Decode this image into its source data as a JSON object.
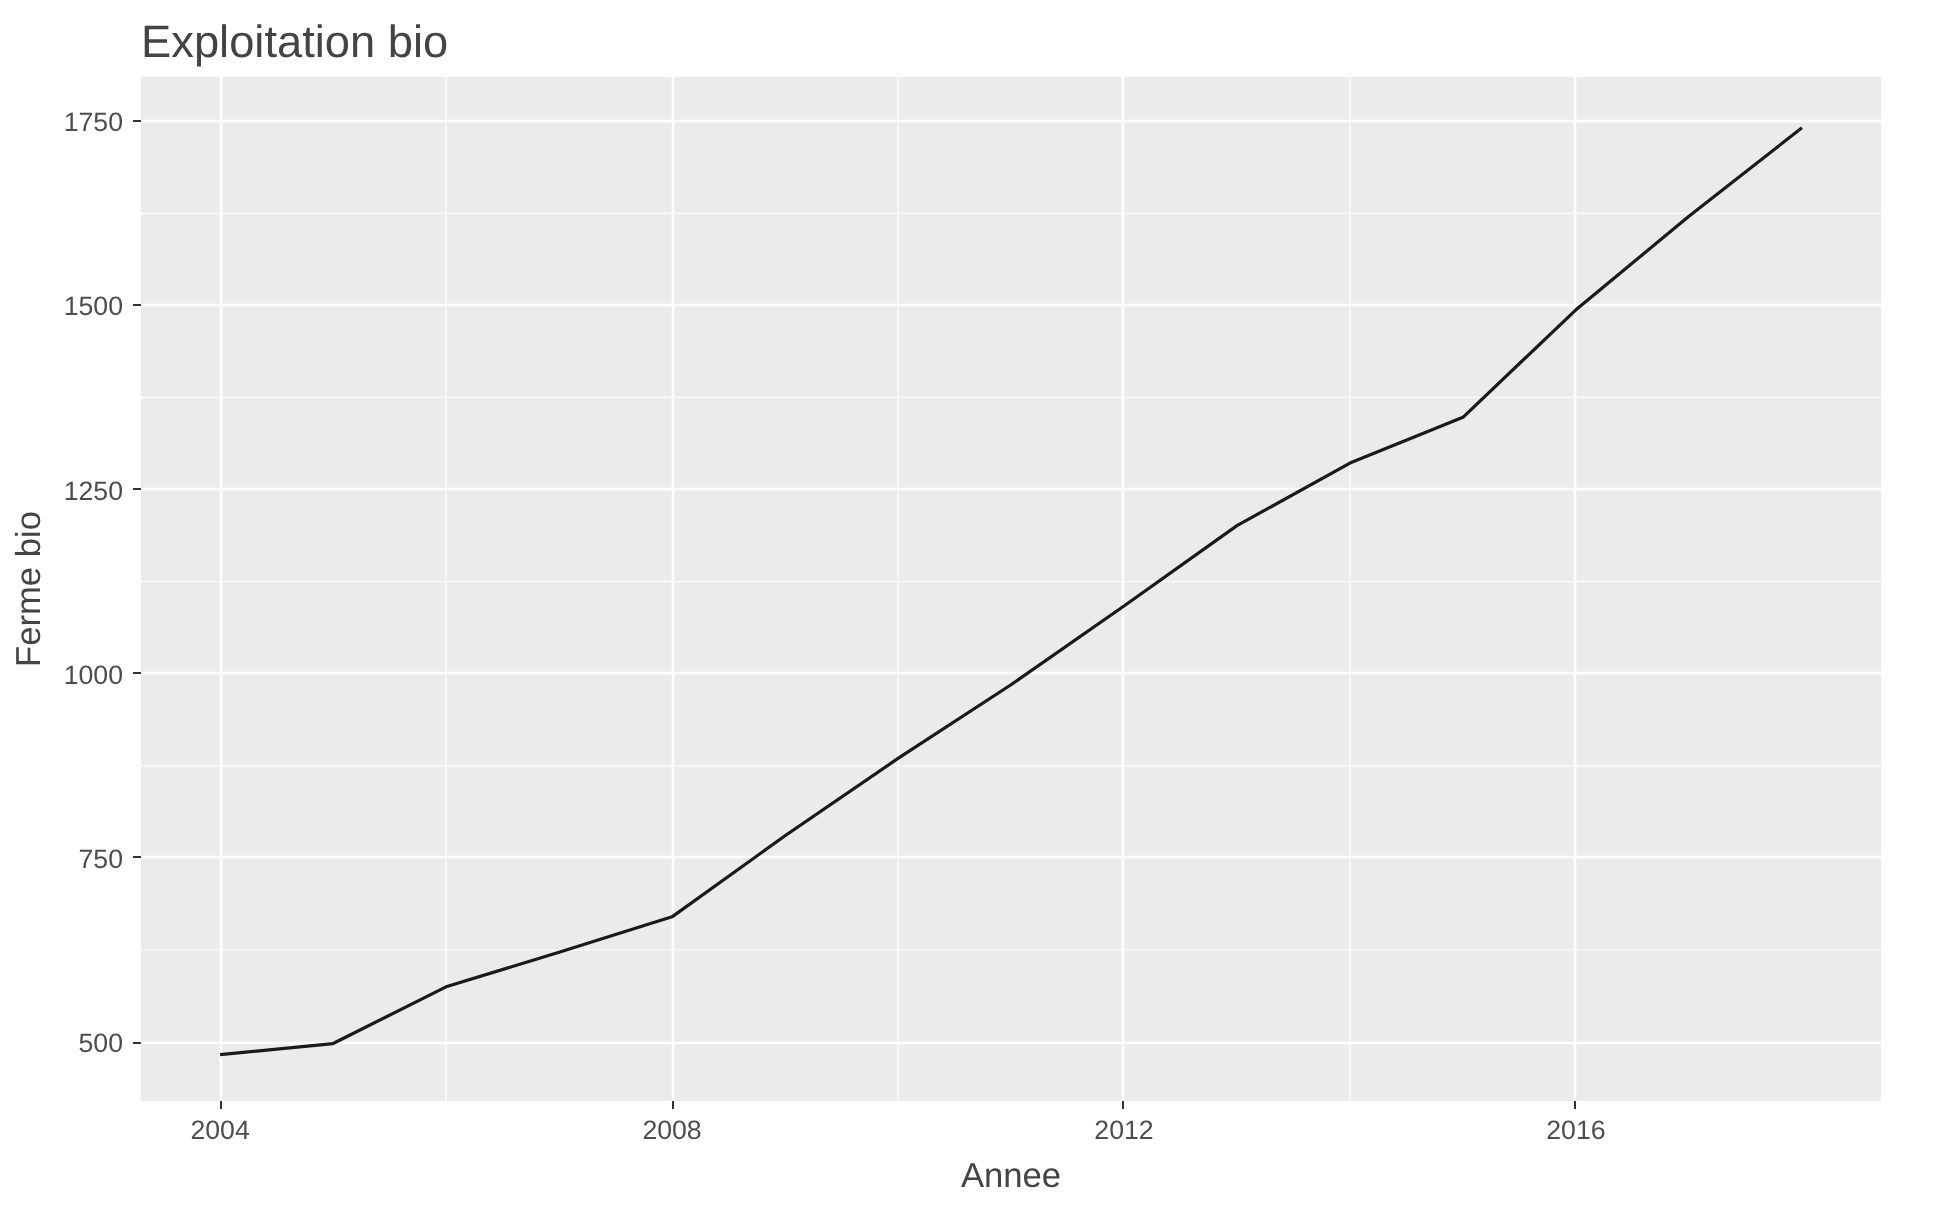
{
  "chart_data": {
    "type": "line",
    "title": "Exploitation bio",
    "xlabel": "Annee",
    "ylabel": "Ferme bio",
    "x": [
      2004,
      2005,
      2006,
      2007,
      2008,
      2009,
      2010,
      2011,
      2012,
      2013,
      2014,
      2015,
      2016,
      2017,
      2018
    ],
    "series": [
      {
        "color": "#1a1a1a",
        "values": [
          483,
          498,
          575,
          622,
          670,
          780,
          885,
          985,
          1092,
          1201,
          1286,
          1348,
          1494,
          1621,
          1741
        ]
      }
    ],
    "xlim": [
      2003.3,
      2018.7
    ],
    "xticks": [
      2004,
      2008,
      2012,
      2016
    ],
    "ylim": [
      420,
      1810
    ],
    "yticks": [
      500,
      750,
      1000,
      1250,
      1500,
      1750
    ],
    "grid": true
  }
}
